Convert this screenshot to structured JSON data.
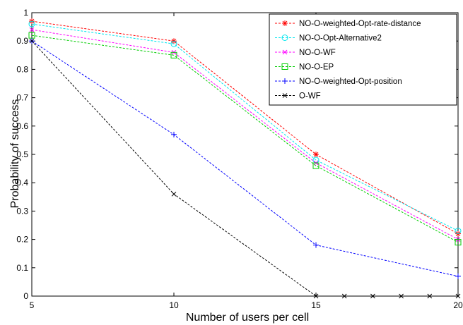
{
  "chart_data": {
    "type": "line",
    "title": "",
    "xlabel": "Number of users per cell",
    "ylabel": "Probability of success",
    "xlim": [
      5,
      20
    ],
    "ylim": [
      0,
      1
    ],
    "xticks": [
      5,
      10,
      15,
      20
    ],
    "yticks": [
      0,
      0.1,
      0.2,
      0.3,
      0.4,
      0.5,
      0.6,
      0.7,
      0.8,
      0.9,
      1
    ],
    "grid": false,
    "legend_position": "top-right",
    "series": [
      {
        "name": "NO-O-weighted-Opt-rate-distance",
        "color": "#ff0000",
        "marker": "star",
        "x": [
          5,
          10,
          15,
          20
        ],
        "y": [
          0.97,
          0.9,
          0.5,
          0.22
        ]
      },
      {
        "name": "NO-O-Opt-Alternative2",
        "color": "#00e5ee",
        "marker": "circle",
        "x": [
          5,
          10,
          15,
          20
        ],
        "y": [
          0.96,
          0.89,
          0.48,
          0.23
        ]
      },
      {
        "name": "NO-O-WF",
        "color": "#ff00ff",
        "marker": "x",
        "x": [
          5,
          10,
          15,
          20
        ],
        "y": [
          0.94,
          0.86,
          0.47,
          0.2
        ]
      },
      {
        "name": "NO-O-EP",
        "color": "#00cc00",
        "marker": "square",
        "x": [
          5,
          10,
          15,
          20
        ],
        "y": [
          0.92,
          0.85,
          0.46,
          0.19
        ]
      },
      {
        "name": "NO-O-weighted-Opt-position",
        "color": "#0000ff",
        "marker": "plus",
        "x": [
          5,
          10,
          15,
          20
        ],
        "y": [
          0.9,
          0.57,
          0.18,
          0.07
        ]
      },
      {
        "name": "O-WF",
        "color": "#000000",
        "marker": "x",
        "x": [
          5,
          10,
          15,
          16,
          17,
          18,
          19,
          20
        ],
        "y": [
          0.9,
          0.36,
          0,
          0,
          0,
          0,
          0,
          0
        ]
      }
    ]
  }
}
